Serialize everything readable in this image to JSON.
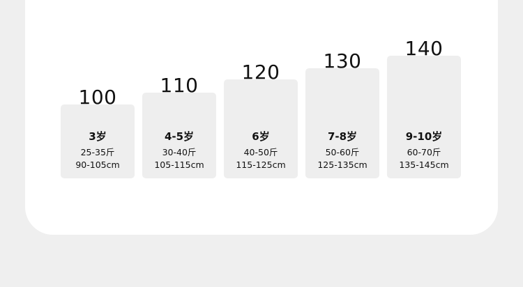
{
  "sizes": [
    {
      "size": "100",
      "age": "3岁",
      "weight": "25-35斤",
      "height": "90-105cm"
    },
    {
      "size": "110",
      "age": "4-5岁",
      "weight": "30-40斤",
      "height": "105-115cm"
    },
    {
      "size": "120",
      "age": "6岁",
      "weight": "40-50斤",
      "height": "115-125cm"
    },
    {
      "size": "130",
      "age": "7-8岁",
      "weight": "50-60斤",
      "height": "125-135cm"
    },
    {
      "size": "140",
      "age": "9-10岁",
      "weight": "60-70斤",
      "height": "135-145cm"
    }
  ]
}
